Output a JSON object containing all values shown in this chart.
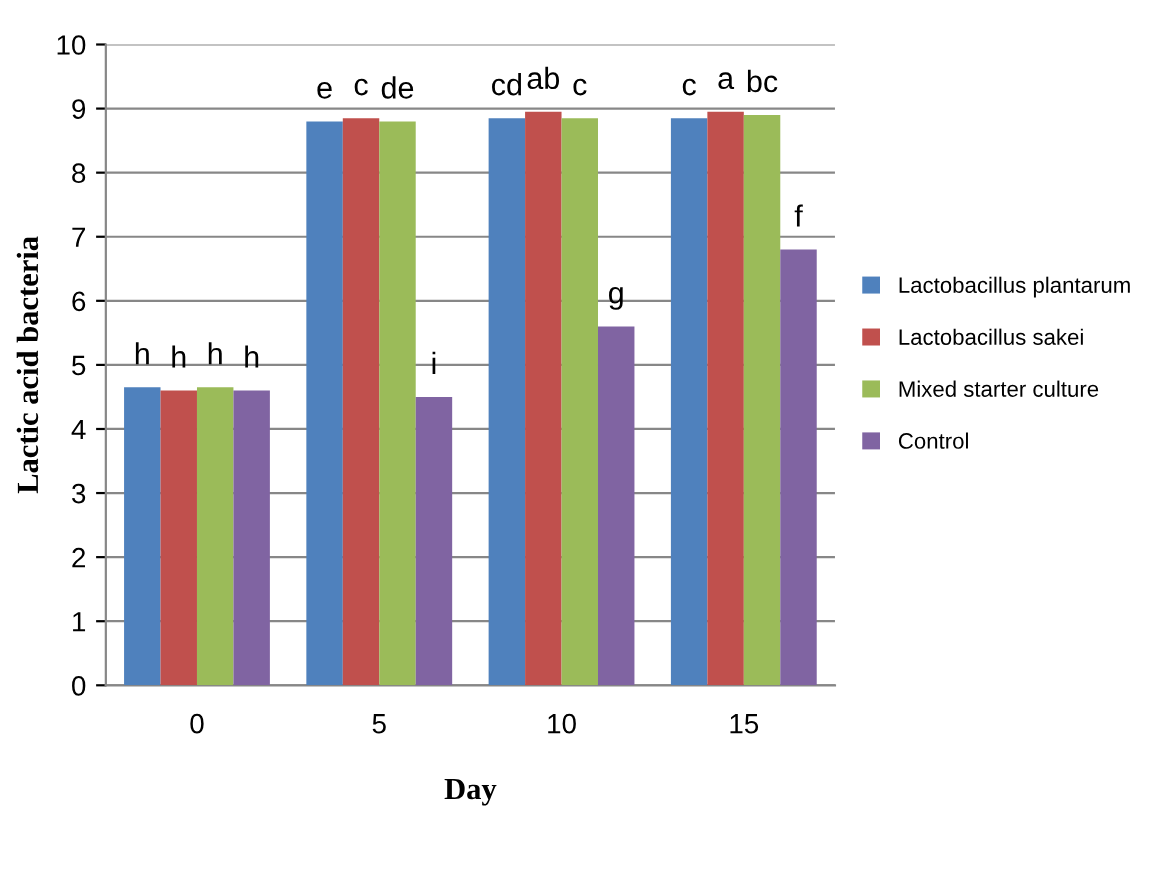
{
  "chart_data": {
    "type": "bar",
    "xlabel": "Day",
    "ylabel": "Lactic acid bacteria",
    "categories": [
      "0",
      "5",
      "10",
      "15"
    ],
    "series": [
      {
        "name": "Lactobacillus plantarum",
        "color": "#4f81bd",
        "values": [
          4.65,
          8.8,
          8.85,
          8.85
        ]
      },
      {
        "name": "Lactobacillus sakei",
        "color": "#c0504d",
        "values": [
          4.6,
          8.85,
          8.95,
          8.95
        ]
      },
      {
        "name": "Mixed starter culture",
        "color": "#9bbb59",
        "values": [
          4.65,
          8.8,
          8.85,
          8.9
        ]
      },
      {
        "name": "Control",
        "color": "#8064a2",
        "values": [
          4.6,
          4.5,
          5.6,
          6.8
        ]
      }
    ],
    "annotations": [
      {
        "text": "h",
        "x": "0",
        "y": 4.65
      },
      {
        "text": "h",
        "x": "0",
        "y": 4.6
      },
      {
        "text": "h",
        "x": "0",
        "y": 4.65
      },
      {
        "text": "h",
        "x": "0",
        "y": 4.6
      },
      {
        "text": "e",
        "x": "5",
        "y": 8.8
      },
      {
        "text": "c",
        "x": "5",
        "y": 8.85
      },
      {
        "text": "de",
        "x": "5",
        "y": 8.8
      },
      {
        "text": "i",
        "x": "5",
        "y": 4.5
      },
      {
        "text": "cd",
        "x": "10",
        "y": 8.85
      },
      {
        "text": "ab",
        "x": "10",
        "y": 8.95
      },
      {
        "text": "c",
        "x": "10",
        "y": 8.85
      },
      {
        "text": "g",
        "x": "10",
        "y": 5.6
      },
      {
        "text": "c",
        "x": "15",
        "y": 8.85
      },
      {
        "text": "a",
        "x": "15",
        "y": 8.95
      },
      {
        "text": "bc",
        "x": "15",
        "y": 8.9
      },
      {
        "text": "f",
        "x": "15",
        "y": 6.8
      }
    ],
    "ylim": [
      0,
      10
    ],
    "yticks": [
      0,
      1,
      2,
      3,
      4,
      5,
      6,
      7,
      8,
      9,
      10
    ],
    "grid": "y",
    "legend": "right"
  }
}
